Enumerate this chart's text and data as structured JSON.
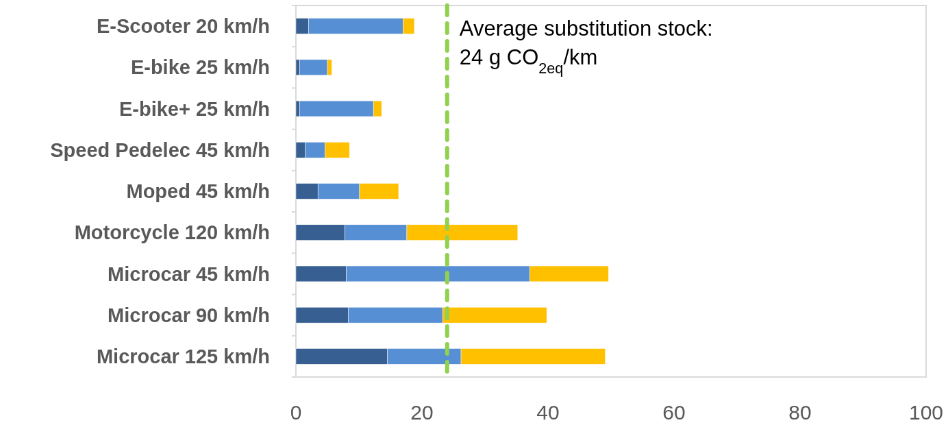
{
  "chart_data": {
    "type": "bar",
    "orientation": "horizontal",
    "stacked": true,
    "categories": [
      "E-Scooter 20 km/h",
      "E-bike 25 km/h",
      "E-bike+ 25 km/h",
      "Speed Pedelec 45 km/h",
      "Moped 45 km/h",
      "Motorcycle 120 km/h",
      "Microcar 45 km/h",
      "Microcar 90 km/h",
      "Microcar 125 km/h"
    ],
    "series": [
      {
        "color": "#375f91",
        "values": [
          2.0,
          0.6,
          0.6,
          1.5,
          3.5,
          7.8,
          8.0,
          8.3,
          14.5
        ]
      },
      {
        "color": "#568fd4",
        "values": [
          15.0,
          4.4,
          11.7,
          3.1,
          6.6,
          9.8,
          29.1,
          15.0,
          11.7
        ]
      },
      {
        "color": "#ffc000",
        "values": [
          1.8,
          0.7,
          1.3,
          3.9,
          6.2,
          17.6,
          12.5,
          16.5,
          22.9
        ]
      }
    ],
    "xlim": [
      0,
      100
    ],
    "xticks": [
      0,
      20,
      40,
      60,
      80,
      100
    ],
    "grid": false,
    "ref_lines": [
      {
        "axis": "x",
        "value": 24,
        "label": "Average substitution stock:\n24 g CO$_{2eq}$/km",
        "color": "#92d050",
        "line_style": "dashed"
      }
    ]
  }
}
